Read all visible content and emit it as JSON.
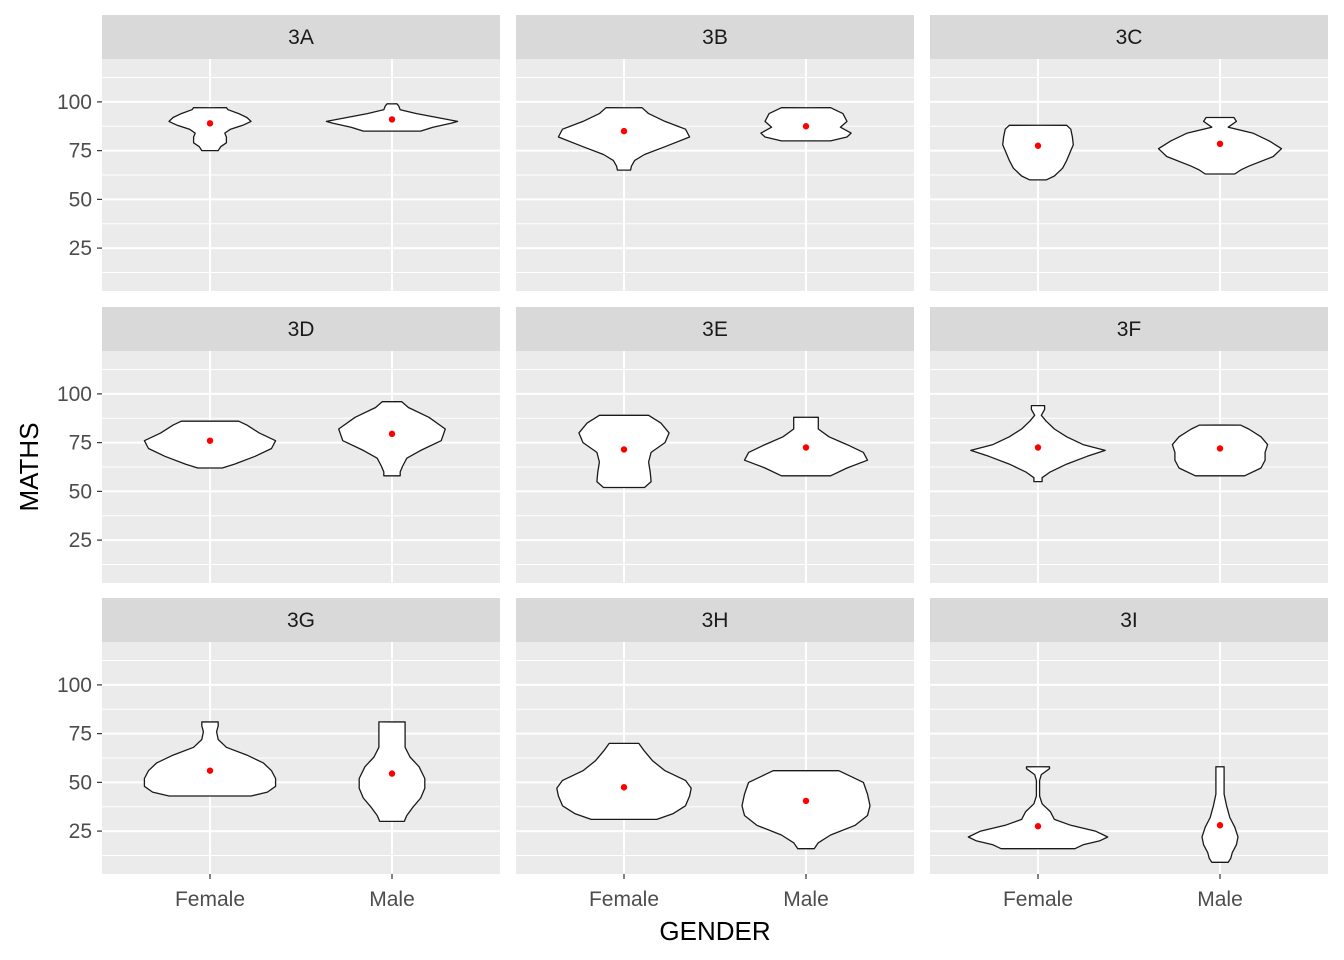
{
  "chart_data": {
    "type": "violin",
    "title": "",
    "xlabel": "GENDER",
    "ylabel": "MATHS",
    "ylim": [
      3,
      122
    ],
    "y_ticks": [
      25,
      50,
      75,
      100
    ],
    "categories": [
      "Female",
      "Male"
    ],
    "grid": true,
    "colors": {
      "panel_bg": "#ebebeb",
      "strip_bg": "#d9d9d9",
      "grid": "#ffffff",
      "violin_fill": "#ffffff",
      "violin_stroke": "#1a1a1a",
      "mean_point": "#ff0000"
    },
    "panels": [
      {
        "label": "3A",
        "violins": [
          {
            "group": "Female",
            "mean": 89,
            "profile": [
              [
                75,
                0.1
              ],
              [
                77,
                0.13
              ],
              [
                79,
                0.2
              ],
              [
                82,
                0.2
              ],
              [
                84,
                0.18
              ],
              [
                86,
                0.25
              ],
              [
                88,
                0.4
              ],
              [
                90,
                0.5
              ],
              [
                92,
                0.45
              ],
              [
                94,
                0.35
              ],
              [
                96,
                0.22
              ],
              [
                97,
                0.2
              ]
            ]
          },
          {
            "group": "Male",
            "mean": 91,
            "profile": [
              [
                85,
                0.35
              ],
              [
                87,
                0.5
              ],
              [
                89,
                0.72
              ],
              [
                90,
                0.8
              ],
              [
                92,
                0.55
              ],
              [
                94,
                0.3
              ],
              [
                96,
                0.1
              ],
              [
                98,
                0.08
              ],
              [
                99,
                0.06
              ]
            ]
          }
        ]
      },
      {
        "label": "3B",
        "violins": [
          {
            "group": "Female",
            "mean": 85,
            "profile": [
              [
                65,
                0.08
              ],
              [
                67,
                0.09
              ],
              [
                70,
                0.13
              ],
              [
                73,
                0.25
              ],
              [
                77,
                0.5
              ],
              [
                82,
                0.8
              ],
              [
                86,
                0.75
              ],
              [
                90,
                0.5
              ],
              [
                94,
                0.3
              ],
              [
                97,
                0.22
              ]
            ]
          },
          {
            "group": "Male",
            "mean": 87.5,
            "profile": [
              [
                80,
                0.3
              ],
              [
                82,
                0.5
              ],
              [
                84,
                0.55
              ],
              [
                87,
                0.42
              ],
              [
                90,
                0.5
              ],
              [
                94,
                0.45
              ],
              [
                97,
                0.3
              ]
            ]
          }
        ]
      },
      {
        "label": "3C",
        "violins": [
          {
            "group": "Female",
            "mean": 77.5,
            "profile": [
              [
                60,
                0.1
              ],
              [
                62,
                0.2
              ],
              [
                66,
                0.3
              ],
              [
                70,
                0.35
              ],
              [
                75,
                0.4
              ],
              [
                78,
                0.43
              ],
              [
                82,
                0.42
              ],
              [
                86,
                0.4
              ],
              [
                88,
                0.35
              ]
            ]
          },
          {
            "group": "Male",
            "mean": 78.5,
            "profile": [
              [
                63,
                0.18
              ],
              [
                65,
                0.25
              ],
              [
                67,
                0.35
              ],
              [
                72,
                0.65
              ],
              [
                76,
                0.75
              ],
              [
                80,
                0.6
              ],
              [
                84,
                0.4
              ],
              [
                87,
                0.1
              ],
              [
                90,
                0.2
              ],
              [
                92,
                0.17
              ]
            ]
          }
        ]
      },
      {
        "label": "3D",
        "violins": [
          {
            "group": "Female",
            "mean": 76,
            "profile": [
              [
                62,
                0.15
              ],
              [
                64,
                0.3
              ],
              [
                68,
                0.55
              ],
              [
                72,
                0.75
              ],
              [
                76,
                0.8
              ],
              [
                80,
                0.6
              ],
              [
                84,
                0.45
              ],
              [
                86,
                0.35
              ]
            ]
          },
          {
            "group": "Male",
            "mean": 79.5,
            "profile": [
              [
                58,
                0.1
              ],
              [
                60,
                0.1
              ],
              [
                63,
                0.13
              ],
              [
                67,
                0.18
              ],
              [
                71,
                0.35
              ],
              [
                76,
                0.6
              ],
              [
                82,
                0.65
              ],
              [
                88,
                0.45
              ],
              [
                93,
                0.2
              ],
              [
                96,
                0.12
              ]
            ]
          }
        ]
      },
      {
        "label": "3E",
        "violins": [
          {
            "group": "Female",
            "mean": 71.5,
            "profile": [
              [
                52,
                0.25
              ],
              [
                55,
                0.33
              ],
              [
                60,
                0.32
              ],
              [
                65,
                0.3
              ],
              [
                70,
                0.33
              ],
              [
                75,
                0.5
              ],
              [
                80,
                0.55
              ],
              [
                85,
                0.45
              ],
              [
                89,
                0.3
              ]
            ]
          },
          {
            "group": "Male",
            "mean": 72.5,
            "profile": [
              [
                58,
                0.3
              ],
              [
                62,
                0.5
              ],
              [
                66,
                0.75
              ],
              [
                70,
                0.7
              ],
              [
                74,
                0.5
              ],
              [
                78,
                0.28
              ],
              [
                82,
                0.15
              ],
              [
                86,
                0.15
              ],
              [
                88,
                0.15
              ]
            ]
          }
        ]
      },
      {
        "label": "3F",
        "violins": [
          {
            "group": "Female",
            "mean": 72.5,
            "profile": [
              [
                55,
                0.05
              ],
              [
                57,
                0.05
              ],
              [
                60,
                0.15
              ],
              [
                64,
                0.35
              ],
              [
                68,
                0.6
              ],
              [
                71,
                0.82
              ],
              [
                74,
                0.55
              ],
              [
                78,
                0.35
              ],
              [
                82,
                0.2
              ],
              [
                86,
                0.1
              ],
              [
                89,
                0.04
              ],
              [
                92,
                0.08
              ],
              [
                94,
                0.08
              ]
            ]
          },
          {
            "group": "Male",
            "mean": 72,
            "profile": [
              [
                58,
                0.3
              ],
              [
                62,
                0.5
              ],
              [
                66,
                0.55
              ],
              [
                70,
                0.55
              ],
              [
                74,
                0.58
              ],
              [
                78,
                0.5
              ],
              [
                82,
                0.35
              ],
              [
                84,
                0.25
              ]
            ]
          }
        ]
      },
      {
        "label": "3G",
        "violins": [
          {
            "group": "Female",
            "mean": 56,
            "profile": [
              [
                43,
                0.5
              ],
              [
                45,
                0.7
              ],
              [
                48,
                0.8
              ],
              [
                52,
                0.8
              ],
              [
                56,
                0.75
              ],
              [
                60,
                0.65
              ],
              [
                64,
                0.45
              ],
              [
                68,
                0.2
              ],
              [
                72,
                0.1
              ],
              [
                76,
                0.08
              ],
              [
                79,
                0.1
              ],
              [
                81,
                0.1
              ]
            ]
          },
          {
            "group": "Male",
            "mean": 54.5,
            "profile": [
              [
                30,
                0.15
              ],
              [
                33,
                0.18
              ],
              [
                37,
                0.25
              ],
              [
                42,
                0.35
              ],
              [
                47,
                0.4
              ],
              [
                52,
                0.4
              ],
              [
                58,
                0.33
              ],
              [
                63,
                0.22
              ],
              [
                68,
                0.16
              ],
              [
                73,
                0.16
              ],
              [
                78,
                0.16
              ],
              [
                81,
                0.16
              ]
            ]
          }
        ]
      },
      {
        "label": "3H",
        "violins": [
          {
            "group": "Female",
            "mean": 47.5,
            "profile": [
              [
                31,
                0.4
              ],
              [
                34,
                0.6
              ],
              [
                38,
                0.75
              ],
              [
                43,
                0.8
              ],
              [
                47,
                0.82
              ],
              [
                51,
                0.75
              ],
              [
                56,
                0.5
              ],
              [
                61,
                0.35
              ],
              [
                66,
                0.25
              ],
              [
                70,
                0.18
              ]
            ]
          },
          {
            "group": "Male",
            "mean": 40.5,
            "profile": [
              [
                16,
                0.1
              ],
              [
                19,
                0.15
              ],
              [
                23,
                0.3
              ],
              [
                28,
                0.6
              ],
              [
                33,
                0.75
              ],
              [
                38,
                0.78
              ],
              [
                44,
                0.75
              ],
              [
                50,
                0.7
              ],
              [
                54,
                0.5
              ],
              [
                56,
                0.4
              ]
            ]
          }
        ]
      },
      {
        "label": "3I",
        "violins": [
          {
            "group": "Female",
            "mean": 27.5,
            "profile": [
              [
                16,
                0.45
              ],
              [
                18,
                0.55
              ],
              [
                20,
                0.75
              ],
              [
                22,
                0.85
              ],
              [
                25,
                0.7
              ],
              [
                28,
                0.4
              ],
              [
                31,
                0.2
              ],
              [
                35,
                0.15
              ],
              [
                39,
                0.05
              ],
              [
                43,
                0.02
              ],
              [
                47,
                0.02
              ],
              [
                51,
                0.02
              ],
              [
                54,
                0.04
              ],
              [
                57,
                0.14
              ],
              [
                58,
                0.14
              ]
            ]
          },
          {
            "group": "Male",
            "mean": 28,
            "profile": [
              [
                9,
                0.1
              ],
              [
                11,
                0.13
              ],
              [
                14,
                0.15
              ],
              [
                18,
                0.2
              ],
              [
                22,
                0.22
              ],
              [
                27,
                0.18
              ],
              [
                32,
                0.12
              ],
              [
                38,
                0.08
              ],
              [
                44,
                0.05
              ],
              [
                50,
                0.05
              ],
              [
                55,
                0.05
              ],
              [
                58,
                0.05
              ]
            ]
          }
        ]
      }
    ]
  }
}
